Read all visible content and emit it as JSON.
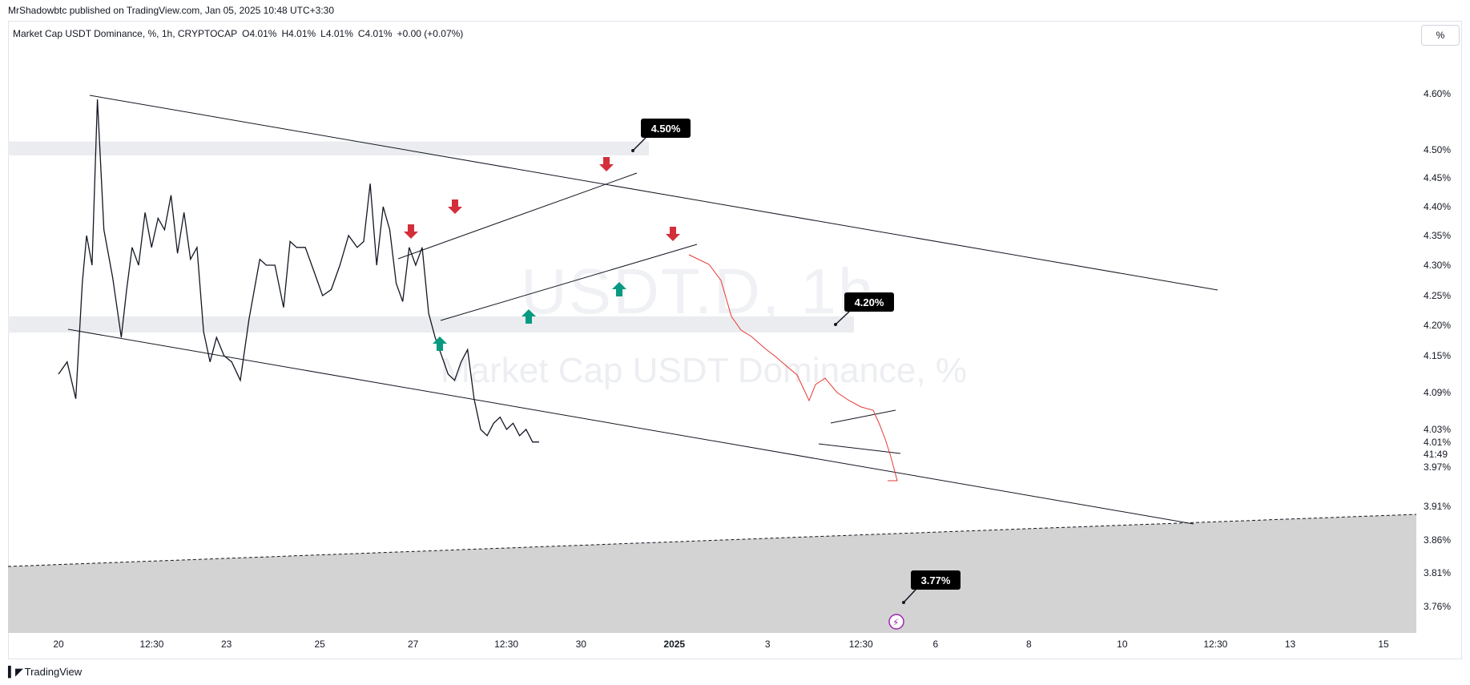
{
  "caption": "MrShadowbtc published on TradingView.com, Jan 05, 2025 10:48 UTC+3:30",
  "legend": {
    "symbol": "Market Cap USDT Dominance, %, 1h, CRYPTOCAP",
    "open": "O4.01%",
    "high": "H4.01%",
    "low": "L4.01%",
    "close": "C4.01%",
    "change": "+0.00 (+0.07%)"
  },
  "scale_button": "%",
  "watermark": {
    "symbol": "USDT.D, 1h",
    "name": "Market Cap USDT Dominance, %"
  },
  "footer": "TradingView",
  "colors": {
    "up_arrow": "#089981",
    "down_arrow": "#d32f3a",
    "projection": "#e53935",
    "line": "#131722",
    "zone": "#ebecef",
    "target_zone": "#d3d3d3"
  },
  "chart_data": {
    "type": "line",
    "title": "Market Cap USDT Dominance",
    "ylim": [
      3.72,
      4.65
    ],
    "y_ticks": [
      "4.60%",
      "4.50%",
      "4.45%",
      "4.40%",
      "4.35%",
      "4.30%",
      "4.25%",
      "4.20%",
      "4.15%",
      "4.09%",
      "4.03%",
      "3.97%",
      "3.91%",
      "3.86%",
      "3.81%",
      "3.76%"
    ],
    "y_tick_values": [
      4.6,
      4.5,
      4.45,
      4.4,
      4.35,
      4.3,
      4.25,
      4.2,
      4.15,
      4.09,
      4.03,
      3.97,
      3.91,
      3.86,
      3.81,
      3.76
    ],
    "x_ticks": [
      "20",
      "12:30",
      "23",
      "25",
      "27",
      "12:30",
      "30",
      "2025",
      "3",
      "12:30",
      "6",
      "8",
      "10",
      "12:30",
      "13",
      "15"
    ],
    "x_tick_positions": [
      0,
      5,
      9,
      14,
      19,
      24,
      28,
      33,
      38,
      43,
      47,
      52,
      57,
      62,
      66,
      71
    ],
    "last_price": "4.01%",
    "countdown": "41:49",
    "price_labels": [
      {
        "text": "4.50%",
        "value": 4.5
      },
      {
        "text": "4.20%",
        "value": 4.2
      },
      {
        "text": "3.77%",
        "value": 3.77
      }
    ],
    "series": [
      {
        "x": [
          0,
          0.8,
          1.6,
          2.2,
          2.6,
          3.1,
          3.6,
          4.2,
          5.0,
          5.8,
          6.3,
          6.8,
          7.4,
          8.0,
          8.6,
          9.2,
          9.8,
          10.4,
          11.0,
          11.6,
          12.2,
          12.8,
          13.4,
          14.0,
          14.6,
          15.3,
          16.0,
          16.8,
          17.6,
          18.6,
          19.2,
          20.0,
          20.8,
          21.4,
          22.0,
          22.8,
          23.6,
          24.4,
          25.2,
          26.0,
          26.8,
          27.6,
          28.2,
          28.8,
          29.4,
          30.0,
          30.6,
          31.2,
          31.8,
          32.4,
          33.0,
          33.6,
          34.2,
          34.8,
          35.4,
          36.0,
          36.6,
          37.2,
          37.8,
          38.4,
          39.0,
          39.6,
          40.2,
          40.8,
          41.4,
          42.0,
          42.6,
          43.2,
          43.8,
          44.4
        ],
        "y": [
          4.12,
          4.14,
          4.08,
          4.27,
          4.35,
          4.3,
          4.59,
          4.36,
          4.28,
          4.18,
          4.26,
          4.33,
          4.3,
          4.39,
          4.33,
          4.38,
          4.36,
          4.42,
          4.32,
          4.39,
          4.31,
          4.33,
          4.19,
          4.14,
          4.18,
          4.15,
          4.14,
          4.11,
          4.21,
          4.31,
          4.3,
          4.3,
          4.23,
          4.34,
          4.33,
          4.33,
          4.29,
          4.25,
          4.26,
          4.3,
          4.35,
          4.33,
          4.34,
          4.44,
          4.3,
          4.4,
          4.36,
          4.27,
          4.24,
          4.33,
          4.3,
          4.33,
          4.22,
          4.18,
          4.15,
          4.12,
          4.11,
          4.14,
          4.16,
          4.08,
          4.03,
          4.02,
          4.04,
          4.05,
          4.03,
          4.04,
          4.02,
          4.03,
          4.01,
          4.01
        ]
      }
    ]
  }
}
